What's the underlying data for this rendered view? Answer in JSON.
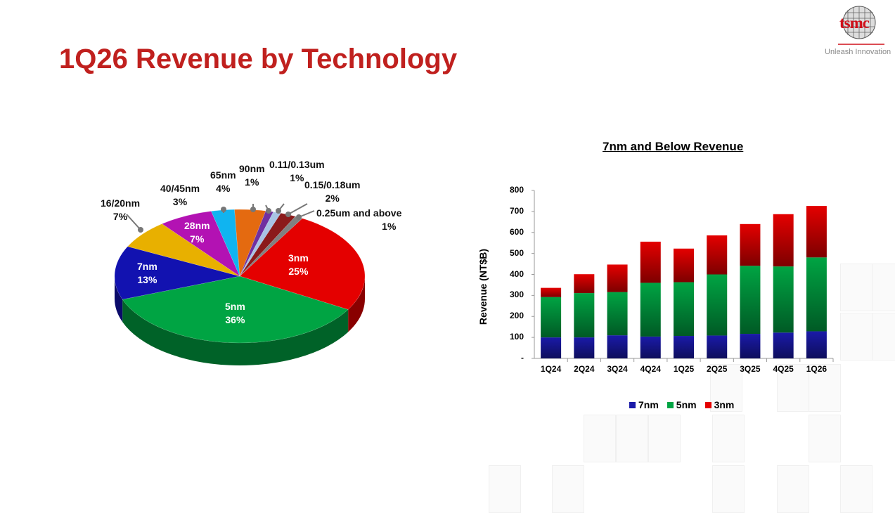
{
  "title": "1Q26 Revenue by Technology",
  "logo": {
    "word": "tsmc",
    "tagline": "Unleash Innovation"
  },
  "chart_data": [
    {
      "type": "pie",
      "style": "3d",
      "slices": [
        {
          "label": "3nm",
          "value": 25,
          "pct": "25%",
          "color": "#e40000"
        },
        {
          "label": "5nm",
          "value": 36,
          "pct": "36%",
          "color": "#00a443"
        },
        {
          "label": "7nm",
          "value": 13,
          "pct": "13%",
          "color": "#1212b0"
        },
        {
          "label": "16/20nm",
          "value": 7,
          "pct": "7%",
          "color": "#e8b000"
        },
        {
          "label": "28nm",
          "value": 7,
          "pct": "7%",
          "color": "#b312b3"
        },
        {
          "label": "40/45nm",
          "value": 3,
          "pct": "3%",
          "color": "#10b4f0"
        },
        {
          "label": "65nm",
          "value": 4,
          "pct": "4%",
          "color": "#e46a10"
        },
        {
          "label": "90nm",
          "value": 1,
          "pct": "1%",
          "color": "#7030a0"
        },
        {
          "label": "0.11/0.13um",
          "value": 1,
          "pct": "1%",
          "color": "#a8c4e4"
        },
        {
          "label": "0.15/0.18um",
          "value": 2,
          "pct": "2%",
          "color": "#8b1a1a"
        },
        {
          "label": "0.25um and above",
          "value": 1,
          "pct": "1%",
          "color": "#808080"
        }
      ]
    },
    {
      "type": "bar",
      "stacked": true,
      "title": "7nm and Below Revenue",
      "ylabel": "Revenue (NT$B)",
      "ylim": [
        0,
        800
      ],
      "yticks": [
        "-",
        "100",
        "200",
        "300",
        "400",
        "500",
        "600",
        "700",
        "800"
      ],
      "categories": [
        "1Q24",
        "2Q24",
        "3Q24",
        "4Q24",
        "1Q25",
        "2Q25",
        "3Q25",
        "4Q25",
        "1Q26"
      ],
      "series": [
        {
          "name": "7nm",
          "color": "#1a1aa8",
          "values": [
            100,
            100,
            110,
            104,
            107,
            109,
            117,
            123,
            129
          ]
        },
        {
          "name": "5nm",
          "color": "#00a443",
          "values": [
            192,
            211,
            206,
            256,
            256,
            291,
            324,
            315,
            352
          ]
        },
        {
          "name": "3nm",
          "color": "#e40000",
          "values": [
            44,
            90,
            131,
            196,
            160,
            186,
            199,
            249,
            245
          ]
        }
      ],
      "legend": "bottom"
    }
  ]
}
